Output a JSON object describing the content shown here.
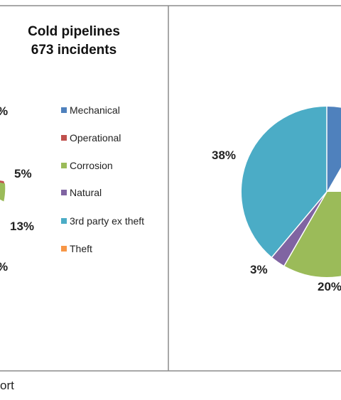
{
  "chart_data": [
    {
      "type": "pie",
      "title_lines": [
        "Cold pipelines",
        "673 incidents"
      ],
      "visible_labels": [
        "%",
        "5%",
        "13%",
        "%"
      ],
      "legend": [
        {
          "name": "Mechanical",
          "color": "#4F81BD"
        },
        {
          "name": "Operational",
          "color": "#C0504D"
        },
        {
          "name": "Corrosion",
          "color": "#9BBB59"
        },
        {
          "name": "Natural",
          "color": "#8064A2"
        },
        {
          "name": "3rd party ex theft",
          "color": "#4BACC6"
        },
        {
          "name": "Theft",
          "color": "#F79646"
        }
      ],
      "slices": [
        {
          "category": "Operational",
          "value": 5
        },
        {
          "category": "Corrosion",
          "value": 13
        }
      ],
      "legend_placement": "right"
    },
    {
      "type": "pie",
      "slices": [
        {
          "category": "Mechanical",
          "value": null,
          "color": "#4F81BD"
        },
        {
          "category": "Operational",
          "value": null,
          "color": "#C0504D"
        },
        {
          "category": "Corrosion",
          "value": 20,
          "color": "#9BBB59"
        },
        {
          "category": "Natural",
          "value": 3,
          "color": "#8064A2"
        },
        {
          "category": "3rd party ex theft",
          "value": 38,
          "color": "#4BACC6"
        }
      ],
      "visible_labels": [
        "38%",
        "3%",
        "20%"
      ]
    }
  ],
  "footer_text": "ort",
  "colors": {
    "frame": "#8c8c8c",
    "mechanical": "#4F81BD",
    "operational": "#C0504D",
    "corrosion": "#9BBB59",
    "natural": "#8064A2",
    "third_party": "#4BACC6",
    "theft": "#F79646"
  }
}
